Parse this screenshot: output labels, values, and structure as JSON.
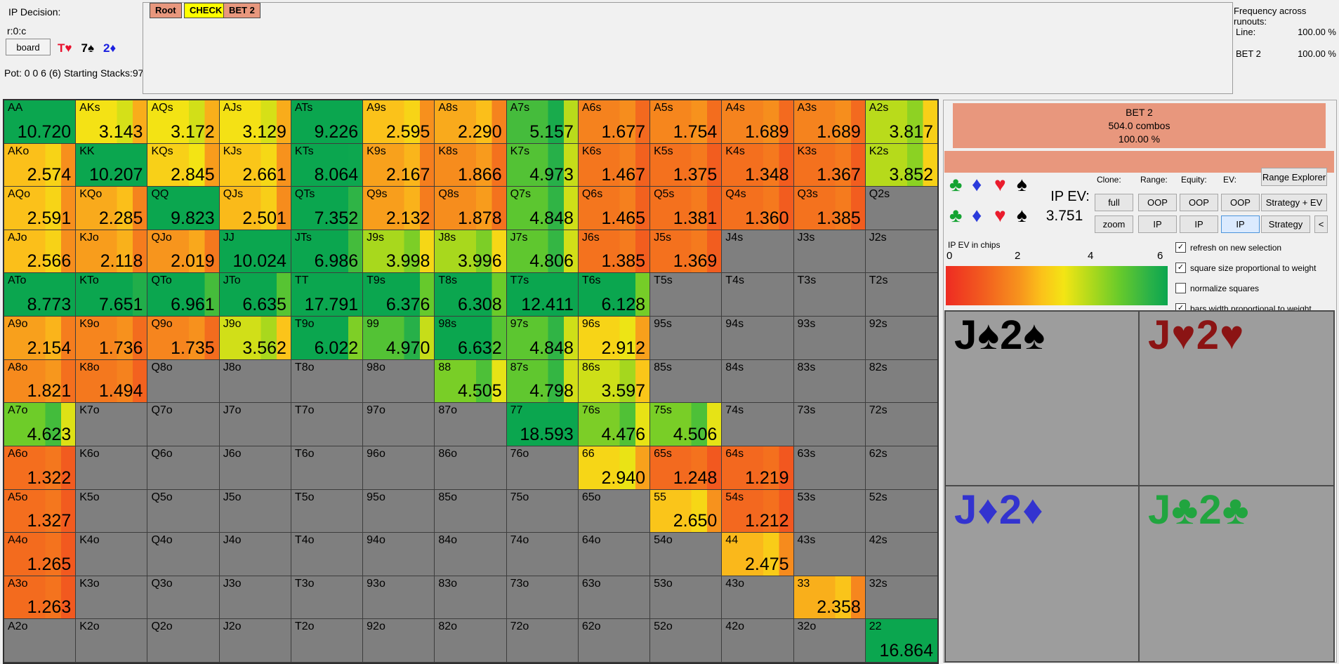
{
  "header": {
    "ip_decision_label": "IP Decision:",
    "node": "r:0:c",
    "board_button_label": "board",
    "board_cards": [
      {
        "card": "T♥",
        "suit": "heart",
        "color": "#e8112d"
      },
      {
        "card": "7♠",
        "suit": "spade",
        "color": "#000000"
      },
      {
        "card": "2♦",
        "suit": "diamond",
        "color": "#1b20e0"
      }
    ],
    "pot_line": "Pot: 0 0 6 (6) Starting Stacks:97"
  },
  "tabs": [
    {
      "label": "Root",
      "bg": "#e8977d",
      "active": false
    },
    {
      "label": "CHECK",
      "bg": "#ffff00",
      "active": true
    },
    {
      "label": "BET 2",
      "bg": "#e8977d",
      "active": false
    }
  ],
  "frequency_panel": {
    "title": "Frequency across runouts:",
    "rows": [
      {
        "label": "Line:",
        "value": "100.00 %"
      },
      {
        "label": "BET 2",
        "value": "100.00 %"
      }
    ]
  },
  "grid": {
    "cells": [
      [
        [
          "AA",
          "10.720"
        ],
        [
          "AKs",
          "3.143"
        ],
        [
          "AQs",
          "3.172"
        ],
        [
          "AJs",
          "3.129"
        ],
        [
          "ATs",
          "9.226"
        ],
        [
          "A9s",
          "2.595"
        ],
        [
          "A8s",
          "2.290"
        ],
        [
          "A7s",
          "5.157"
        ],
        [
          "A6s",
          "1.677"
        ],
        [
          "A5s",
          "1.754"
        ],
        [
          "A4s",
          "1.689"
        ],
        [
          "A3s",
          "1.689"
        ],
        [
          "A2s",
          "3.817"
        ]
      ],
      [
        [
          "AKo",
          "2.574"
        ],
        [
          "KK",
          "10.207"
        ],
        [
          "KQs",
          "2.845"
        ],
        [
          "KJs",
          "2.661"
        ],
        [
          "KTs",
          "8.064"
        ],
        [
          "K9s",
          "2.167"
        ],
        [
          "K8s",
          "1.866"
        ],
        [
          "K7s",
          "4.973"
        ],
        [
          "K6s",
          "1.467"
        ],
        [
          "K5s",
          "1.375"
        ],
        [
          "K4s",
          "1.348"
        ],
        [
          "K3s",
          "1.367"
        ],
        [
          "K2s",
          "3.852"
        ]
      ],
      [
        [
          "AQo",
          "2.591"
        ],
        [
          "KQo",
          "2.285"
        ],
        [
          "QQ",
          "9.823"
        ],
        [
          "QJs",
          "2.501"
        ],
        [
          "QTs",
          "7.352"
        ],
        [
          "Q9s",
          "2.132"
        ],
        [
          "Q8s",
          "1.878"
        ],
        [
          "Q7s",
          "4.848"
        ],
        [
          "Q6s",
          "1.465"
        ],
        [
          "Q5s",
          "1.381"
        ],
        [
          "Q4s",
          "1.360"
        ],
        [
          "Q3s",
          "1.385"
        ],
        [
          "Q2s",
          ""
        ]
      ],
      [
        [
          "AJo",
          "2.566"
        ],
        [
          "KJo",
          "2.118"
        ],
        [
          "QJo",
          "2.019"
        ],
        [
          "JJ",
          "10.024"
        ],
        [
          "JTs",
          "6.986"
        ],
        [
          "J9s",
          "3.998"
        ],
        [
          "J8s",
          "3.996"
        ],
        [
          "J7s",
          "4.806"
        ],
        [
          "J6s",
          "1.385"
        ],
        [
          "J5s",
          "1.369"
        ],
        [
          "J4s",
          ""
        ],
        [
          "J3s",
          ""
        ],
        [
          "J2s",
          ""
        ]
      ],
      [
        [
          "ATo",
          "8.773"
        ],
        [
          "KTo",
          "7.651"
        ],
        [
          "QTo",
          "6.961"
        ],
        [
          "JTo",
          "6.635"
        ],
        [
          "TT",
          "17.791"
        ],
        [
          "T9s",
          "6.376"
        ],
        [
          "T8s",
          "6.308"
        ],
        [
          "T7s",
          "12.411"
        ],
        [
          "T6s",
          "6.128"
        ],
        [
          "T5s",
          ""
        ],
        [
          "T4s",
          ""
        ],
        [
          "T3s",
          ""
        ],
        [
          "T2s",
          ""
        ]
      ],
      [
        [
          "A9o",
          "2.154"
        ],
        [
          "K9o",
          "1.736"
        ],
        [
          "Q9o",
          "1.735"
        ],
        [
          "J9o",
          "3.562"
        ],
        [
          "T9o",
          "6.022"
        ],
        [
          "99",
          "4.970"
        ],
        [
          "98s",
          "6.632"
        ],
        [
          "97s",
          "4.848"
        ],
        [
          "96s",
          "2.912"
        ],
        [
          "95s",
          ""
        ],
        [
          "94s",
          ""
        ],
        [
          "93s",
          ""
        ],
        [
          "92s",
          ""
        ]
      ],
      [
        [
          "A8o",
          "1.821"
        ],
        [
          "K8o",
          "1.494"
        ],
        [
          "Q8o",
          ""
        ],
        [
          "J8o",
          ""
        ],
        [
          "T8o",
          ""
        ],
        [
          "98o",
          ""
        ],
        [
          "88",
          "4.505"
        ],
        [
          "87s",
          "4.798"
        ],
        [
          "86s",
          "3.597"
        ],
        [
          "85s",
          ""
        ],
        [
          "84s",
          ""
        ],
        [
          "83s",
          ""
        ],
        [
          "82s",
          ""
        ]
      ],
      [
        [
          "A7o",
          "4.623"
        ],
        [
          "K7o",
          ""
        ],
        [
          "Q7o",
          ""
        ],
        [
          "J7o",
          ""
        ],
        [
          "T7o",
          ""
        ],
        [
          "97o",
          ""
        ],
        [
          "87o",
          ""
        ],
        [
          "77",
          "18.593"
        ],
        [
          "76s",
          "4.476"
        ],
        [
          "75s",
          "4.506"
        ],
        [
          "74s",
          ""
        ],
        [
          "73s",
          ""
        ],
        [
          "72s",
          ""
        ]
      ],
      [
        [
          "A6o",
          "1.322"
        ],
        [
          "K6o",
          ""
        ],
        [
          "Q6o",
          ""
        ],
        [
          "J6o",
          ""
        ],
        [
          "T6o",
          ""
        ],
        [
          "96o",
          ""
        ],
        [
          "86o",
          ""
        ],
        [
          "76o",
          ""
        ],
        [
          "66",
          "2.940"
        ],
        [
          "65s",
          "1.248"
        ],
        [
          "64s",
          "1.219"
        ],
        [
          "63s",
          ""
        ],
        [
          "62s",
          ""
        ]
      ],
      [
        [
          "A5o",
          "1.327"
        ],
        [
          "K5o",
          ""
        ],
        [
          "Q5o",
          ""
        ],
        [
          "J5o",
          ""
        ],
        [
          "T5o",
          ""
        ],
        [
          "95o",
          ""
        ],
        [
          "85o",
          ""
        ],
        [
          "75o",
          ""
        ],
        [
          "65o",
          ""
        ],
        [
          "55",
          "2.650"
        ],
        [
          "54s",
          "1.212"
        ],
        [
          "53s",
          ""
        ],
        [
          "52s",
          ""
        ]
      ],
      [
        [
          "A4o",
          "1.265"
        ],
        [
          "K4o",
          ""
        ],
        [
          "Q4o",
          ""
        ],
        [
          "J4o",
          ""
        ],
        [
          "T4o",
          ""
        ],
        [
          "94o",
          ""
        ],
        [
          "84o",
          ""
        ],
        [
          "74o",
          ""
        ],
        [
          "64o",
          ""
        ],
        [
          "54o",
          ""
        ],
        [
          "44",
          "2.475"
        ],
        [
          "43s",
          ""
        ],
        [
          "42s",
          ""
        ]
      ],
      [
        [
          "A3o",
          "1.263"
        ],
        [
          "K3o",
          ""
        ],
        [
          "Q3o",
          ""
        ],
        [
          "J3o",
          ""
        ],
        [
          "T3o",
          ""
        ],
        [
          "93o",
          ""
        ],
        [
          "83o",
          ""
        ],
        [
          "73o",
          ""
        ],
        [
          "63o",
          ""
        ],
        [
          "53o",
          ""
        ],
        [
          "43o",
          ""
        ],
        [
          "33",
          "2.358"
        ],
        [
          "32s",
          ""
        ]
      ],
      [
        [
          "A2o",
          ""
        ],
        [
          "K2o",
          ""
        ],
        [
          "Q2o",
          ""
        ],
        [
          "J2o",
          ""
        ],
        [
          "T2o",
          ""
        ],
        [
          "92o",
          ""
        ],
        [
          "82o",
          ""
        ],
        [
          "72o",
          ""
        ],
        [
          "62o",
          ""
        ],
        [
          "52o",
          ""
        ],
        [
          "42o",
          ""
        ],
        [
          "32o",
          ""
        ],
        [
          "22",
          "16.864"
        ]
      ]
    ]
  },
  "ev_scale": {
    "label": "IP EV in chips",
    "ticks": [
      "0",
      "2",
      "4",
      "6"
    ],
    "min": 0,
    "max": 6,
    "colormap": [
      {
        "v": 0,
        "c": "#ee2b22"
      },
      {
        "v": 1,
        "c": "#f25c1f"
      },
      {
        "v": 2,
        "c": "#f7941d"
      },
      {
        "v": 2.6,
        "c": "#fbc21a"
      },
      {
        "v": 3.2,
        "c": "#f3e514"
      },
      {
        "v": 4,
        "c": "#a8d81d"
      },
      {
        "v": 4.7,
        "c": "#67ca2b"
      },
      {
        "v": 5.5,
        "c": "#2bb248"
      },
      {
        "v": 6,
        "c": "#0ba64f"
      }
    ]
  },
  "panel": {
    "action_box": {
      "line1": "BET 2",
      "line2": "504.0 combos",
      "line3": "100.00 %"
    },
    "ip_ev_label": "IP EV:",
    "ip_ev_value": "3.751",
    "column_labels": [
      "Clone:",
      "Range:",
      "Equity:",
      "EV:"
    ],
    "buttons": {
      "range_explorer": "Range Explorer",
      "clone_full": "full",
      "clone_zoom": "zoom",
      "range_oop": "OOP",
      "range_ip": "IP",
      "equity_oop": "OOP",
      "equity_ip": "IP",
      "ev_oop": "OOP",
      "ev_ip": "IP",
      "strategy_ev": "Strategy + EV",
      "strategy": "Strategy",
      "collapse": "<"
    },
    "selected_button": "ev_ip",
    "suit_glyphs": {
      "club": "♣",
      "diamond": "♦",
      "heart": "♥",
      "spade": "♠"
    },
    "suit_colors": {
      "club": "#14a332",
      "diamond": "#2b3bdb",
      "heart": "#ea1c2d",
      "spade": "#000000"
    },
    "suit_order": [
      "club",
      "diamond",
      "heart",
      "spade"
    ],
    "checkboxes": [
      {
        "label": "refresh on new selection",
        "checked": true
      },
      {
        "label": "square size proportional to weight",
        "checked": true
      },
      {
        "label": "normalize squares",
        "checked": false
      },
      {
        "label": "bars width proportional to weight",
        "checked": true
      }
    ],
    "combo_cards": [
      {
        "label": "J♠2♠",
        "suit": "spade",
        "color": "#000000"
      },
      {
        "label": "J♥2♥",
        "suit": "heart",
        "color": "#8b1414"
      },
      {
        "label": "J♦2♦",
        "suit": "diamond",
        "color": "#3333cf"
      },
      {
        "label": "J♣2♣",
        "suit": "club",
        "color": "#21a53f"
      }
    ]
  },
  "colors": {
    "action_salmon": "#e8977d",
    "no_range_gray": "#7f7f7f",
    "combo_bg_gray": "#9d9d9d"
  }
}
